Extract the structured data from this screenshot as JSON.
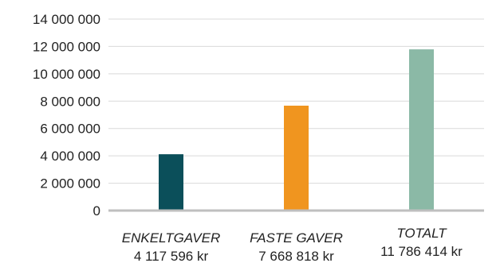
{
  "chart_data": {
    "type": "bar",
    "categories": [
      "ENKELTGAVER",
      "FASTE GAVER",
      "TOTALT"
    ],
    "value_labels": [
      "4 117 596 kr",
      "7 668 818 kr",
      "11 786 414 kr"
    ],
    "values": [
      4117596,
      7668818,
      11786414
    ],
    "colors": [
      "#0b4f5a",
      "#f0951f",
      "#8bb9a6"
    ],
    "yticks": [
      "0",
      "2 000 000",
      "4 000 000",
      "6 000 000",
      "8 000 000",
      "10 000 000",
      "12 000 000",
      "14 000 000"
    ],
    "ylim": [
      0,
      14000000
    ],
    "grid": true,
    "title": "",
    "xlabel": "",
    "ylabel": ""
  }
}
